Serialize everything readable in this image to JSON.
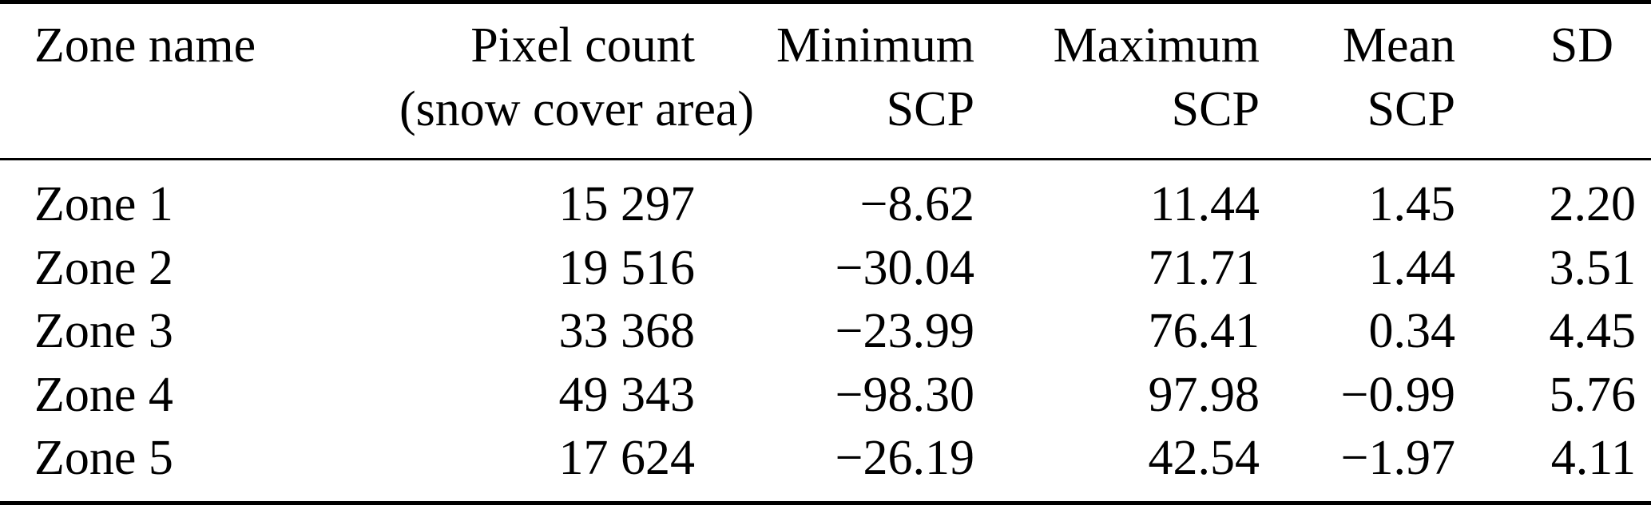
{
  "colors": {
    "background": "#ffffff",
    "text": "#000000",
    "rule": "#000000"
  },
  "table": {
    "columns": [
      {
        "line1": "Zone name",
        "line2": ""
      },
      {
        "line1": "Pixel count",
        "line2": "(snow cover area)"
      },
      {
        "line1": "Minimum",
        "line2": "SCP"
      },
      {
        "line1": "Maximum",
        "line2": "SCP"
      },
      {
        "line1": "Mean",
        "line2": "SCP"
      },
      {
        "line1": "SD",
        "line2": ""
      }
    ],
    "rows": [
      {
        "zone": "Zone 1",
        "pixel_count": "15 297",
        "min_scp": "−8.62",
        "max_scp": "11.44",
        "mean_scp": "1.45",
        "sd": "2.20"
      },
      {
        "zone": "Zone 2",
        "pixel_count": "19 516",
        "min_scp": "−30.04",
        "max_scp": "71.71",
        "mean_scp": "1.44",
        "sd": "3.51"
      },
      {
        "zone": "Zone 3",
        "pixel_count": "33 368",
        "min_scp": "−23.99",
        "max_scp": "76.41",
        "mean_scp": "0.34",
        "sd": "4.45"
      },
      {
        "zone": "Zone 4",
        "pixel_count": "49 343",
        "min_scp": "−98.30",
        "max_scp": "97.98",
        "mean_scp": "−0.99",
        "sd": "5.76"
      },
      {
        "zone": "Zone 5",
        "pixel_count": "17 624",
        "min_scp": "−26.19",
        "max_scp": "42.54",
        "mean_scp": "−1.97",
        "sd": "4.11"
      }
    ]
  }
}
